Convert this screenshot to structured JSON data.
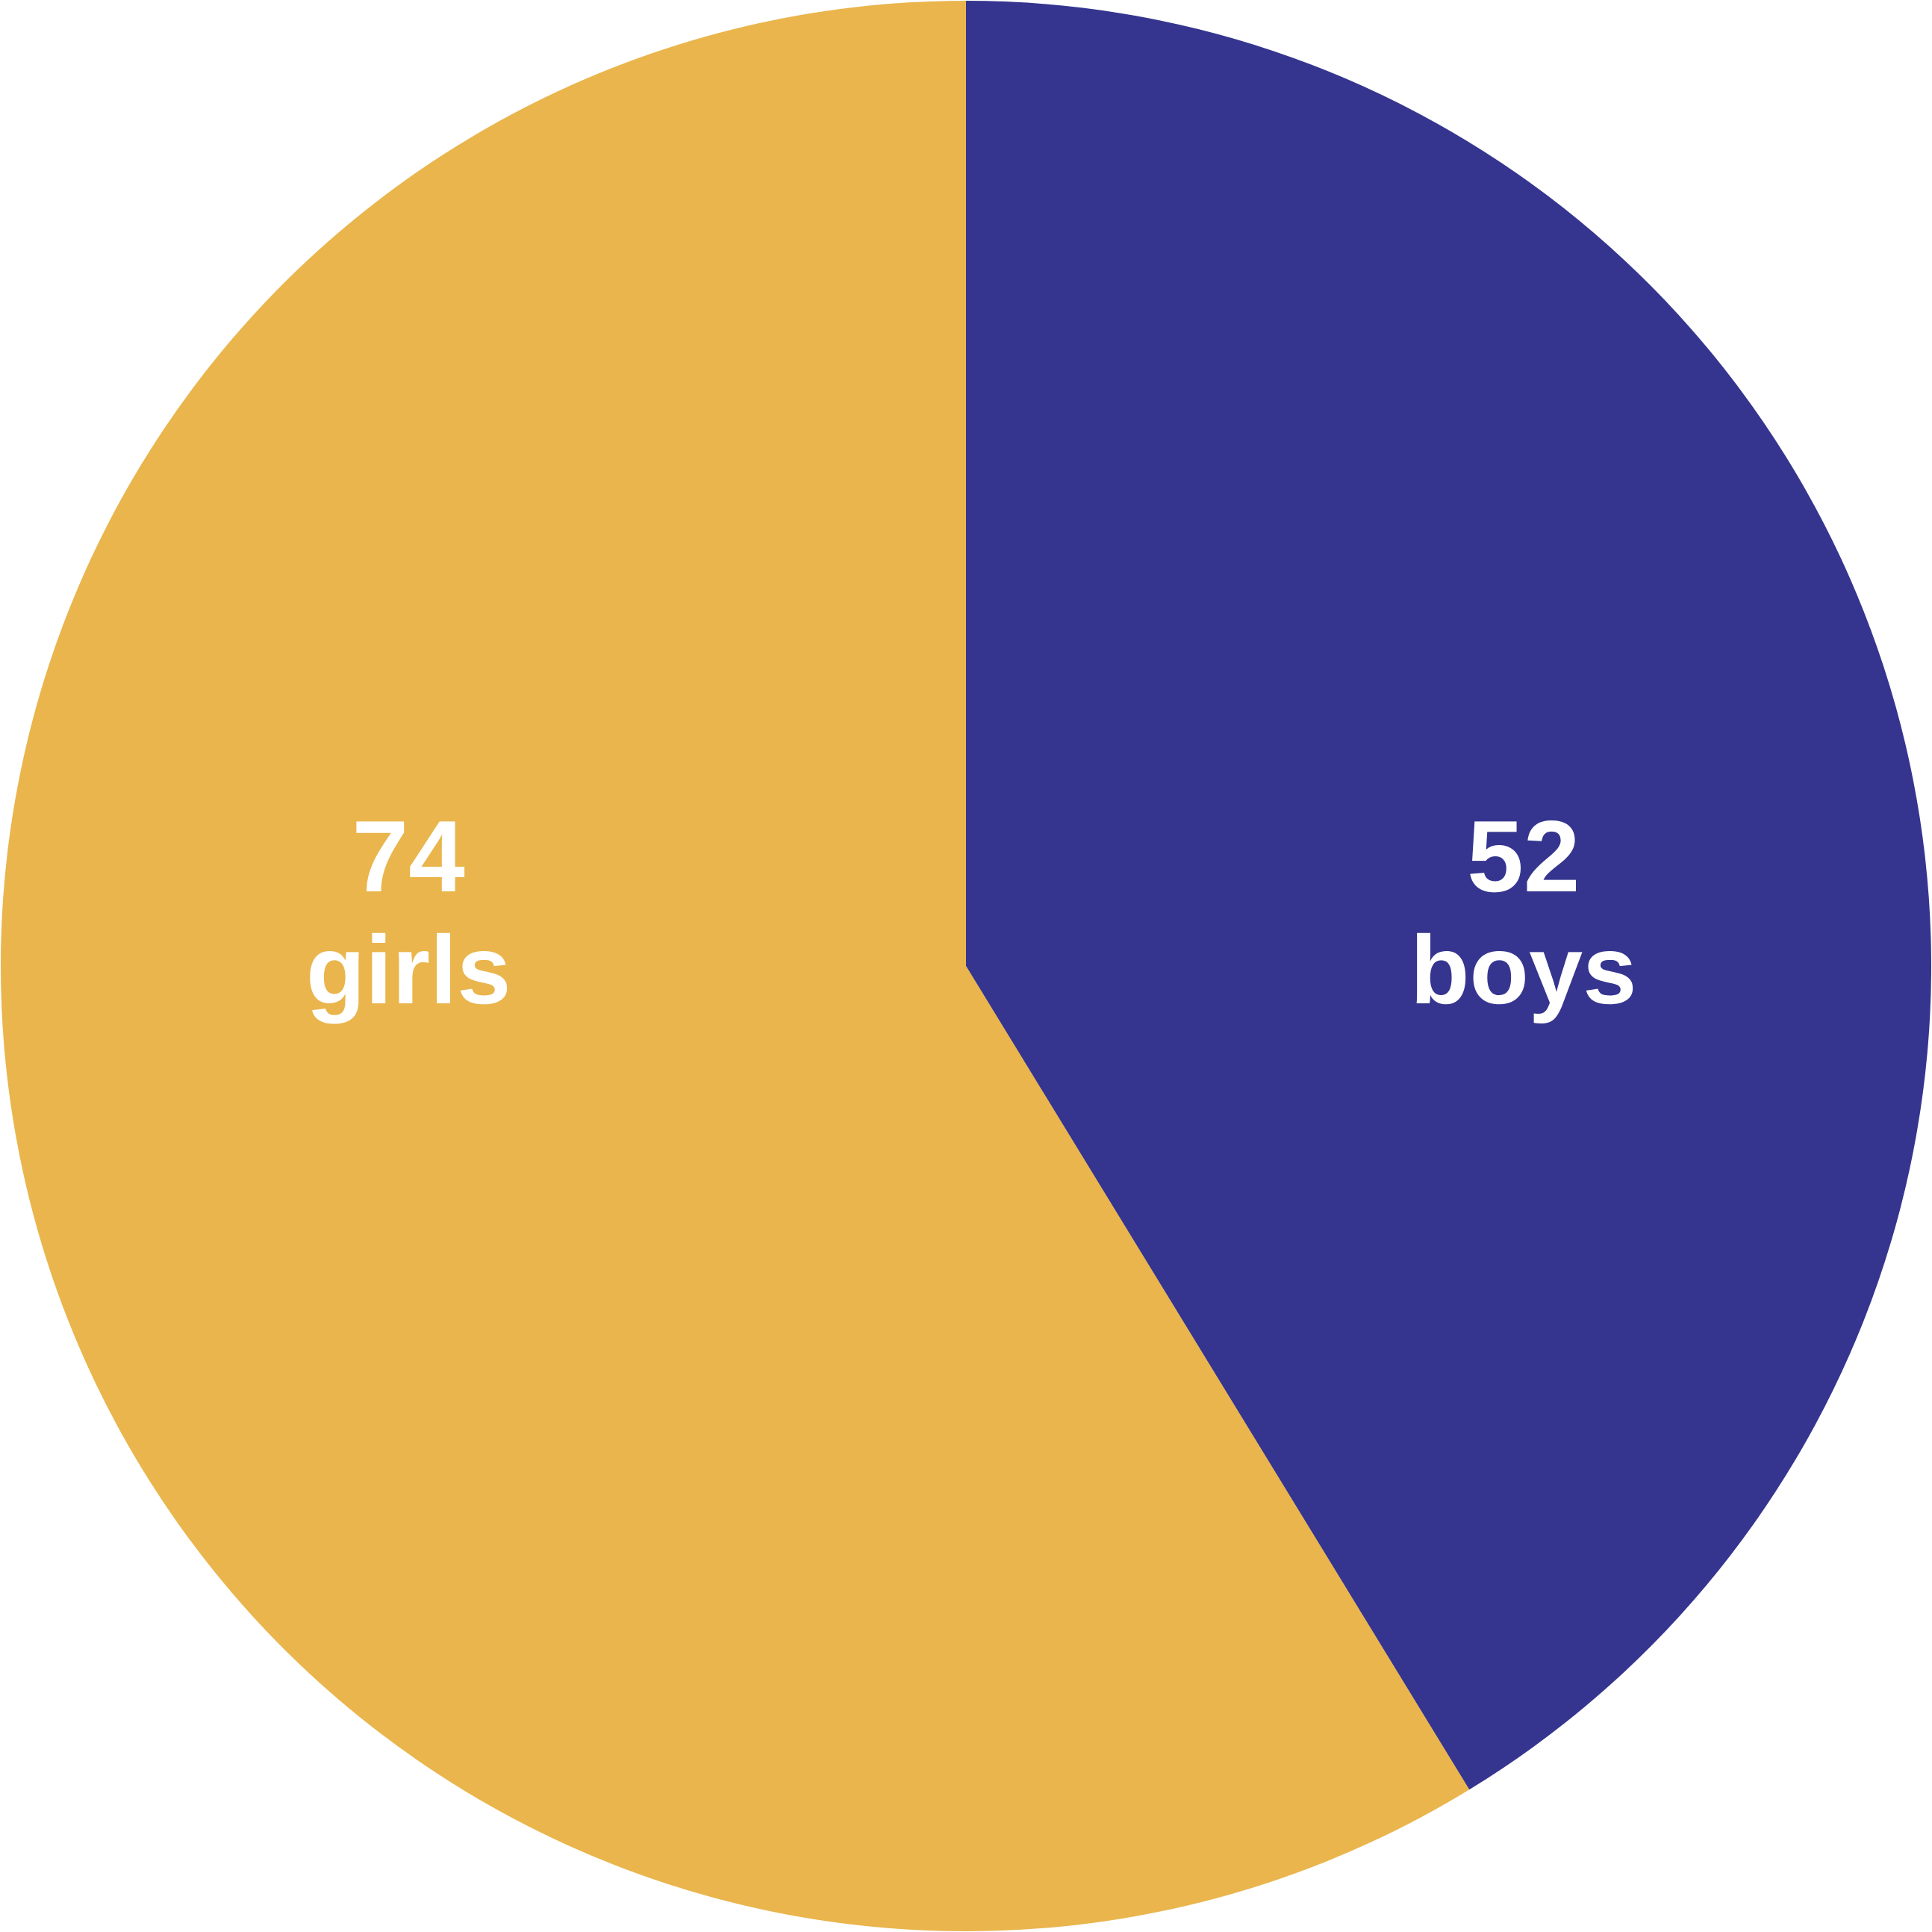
{
  "chart_data": {
    "type": "pie",
    "start_angle_deg": 0,
    "direction": "clockwise",
    "slices": [
      {
        "label": "boys",
        "value": 52,
        "color": "#353590"
      },
      {
        "label": "girls",
        "value": 74,
        "color": "#E9B54C"
      }
    ],
    "title": "",
    "legend": "none"
  }
}
